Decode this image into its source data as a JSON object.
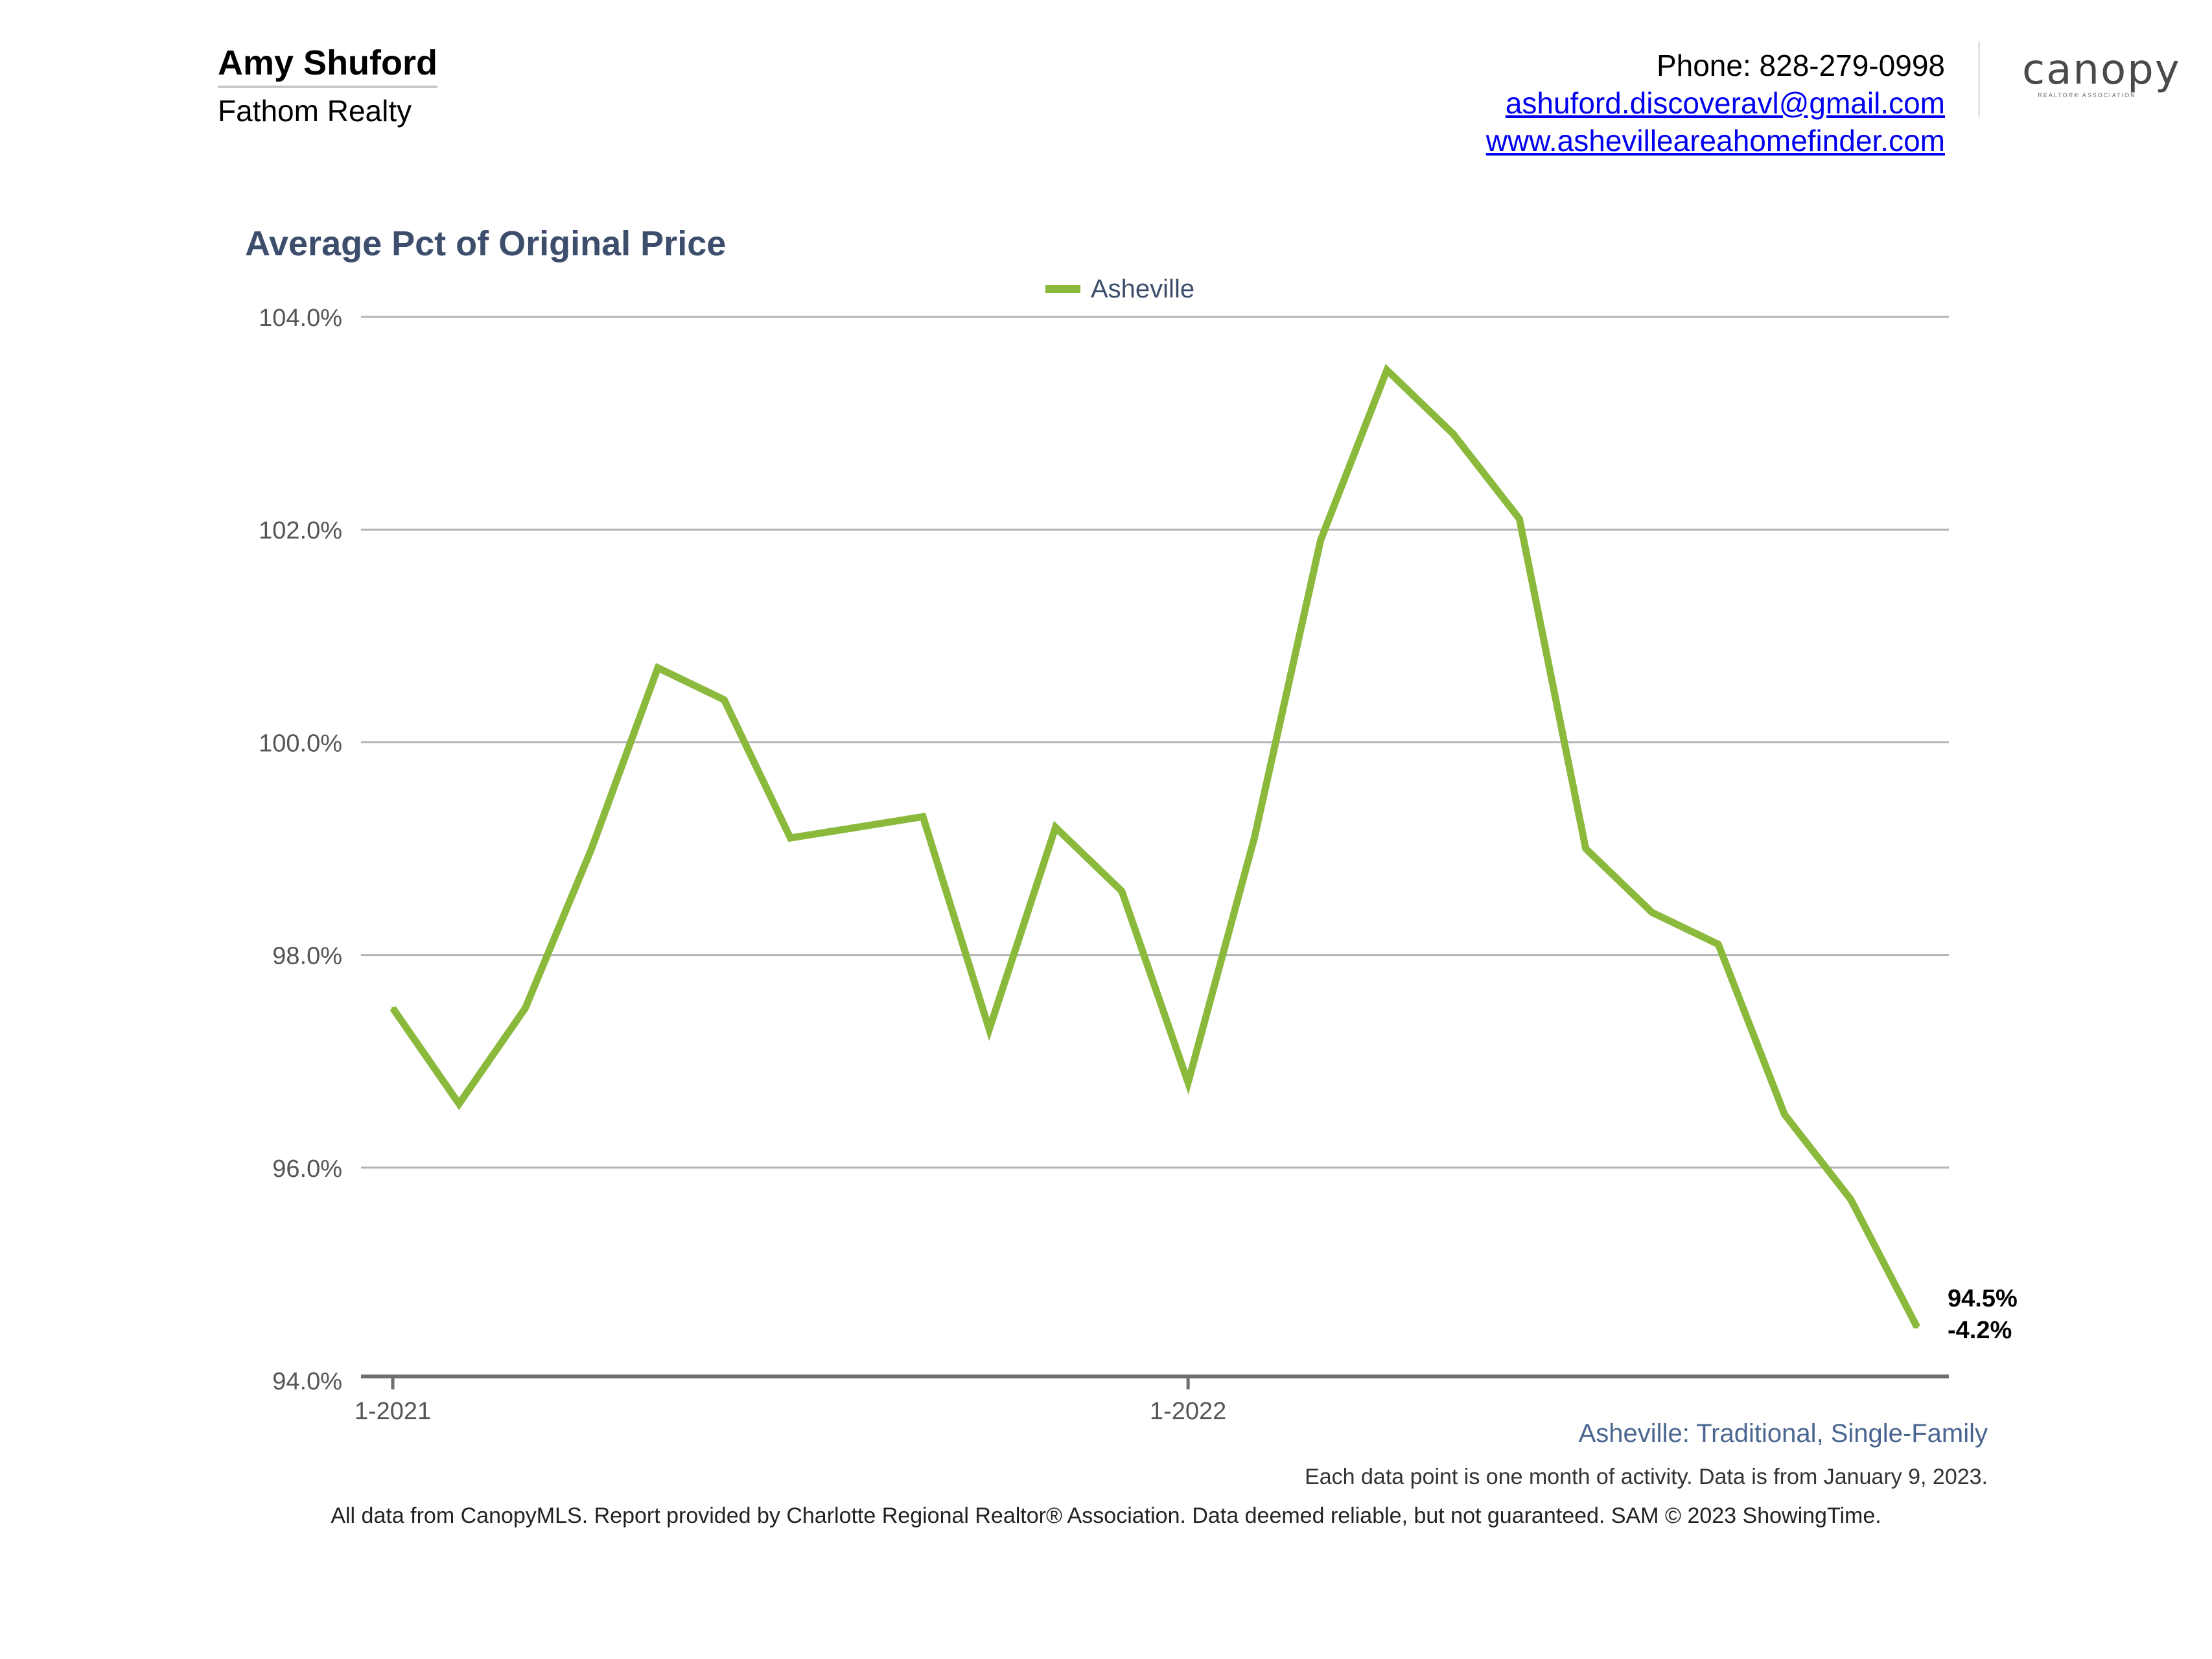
{
  "header": {
    "agent_name": "Amy Shuford",
    "company": "Fathom Realty",
    "phone": "Phone: 828-279-0998",
    "email": "ashuford.discoveravl@gmail.com",
    "website": "www.ashevilleareahomefinder.com",
    "logo_text": "canopy",
    "logo_subtext": "REALTOR® ASSOCIATION"
  },
  "chart_data": {
    "type": "line",
    "title": "Average Pct of Original Price",
    "legend_position": "top-center",
    "grid": true,
    "ylim": [
      94.0,
      104.0
    ],
    "y_ticks": [
      "94.0%",
      "96.0%",
      "98.0%",
      "100.0%",
      "102.0%",
      "104.0%"
    ],
    "y_tick_values": [
      94,
      96,
      98,
      100,
      102,
      104
    ],
    "x_ticks": [
      {
        "label": "1-2021",
        "index": 0
      },
      {
        "label": "1-2022",
        "index": 12
      }
    ],
    "series": [
      {
        "name": "Asheville",
        "color": "#8ab93c",
        "values": [
          97.5,
          96.6,
          97.5,
          99.0,
          100.7,
          100.4,
          99.1,
          99.2,
          99.3,
          97.3,
          99.2,
          98.6,
          96.8,
          99.1,
          101.9,
          103.5,
          102.9,
          102.1,
          99.0,
          98.4,
          98.1,
          96.5,
          95.7,
          94.5
        ]
      }
    ],
    "end_label": {
      "value": "94.5%",
      "change": "-4.2%"
    }
  },
  "footer": {
    "series_description": "Asheville: Traditional, Single-Family",
    "note": "Each data point is one month of activity. Data is from January 9, 2023.",
    "disclaimer": "All data from CanopyMLS. Report provided by Charlotte Regional Realtor® Association. Data deemed reliable, but not guaranteed. SAM © 2023 ShowingTime."
  }
}
